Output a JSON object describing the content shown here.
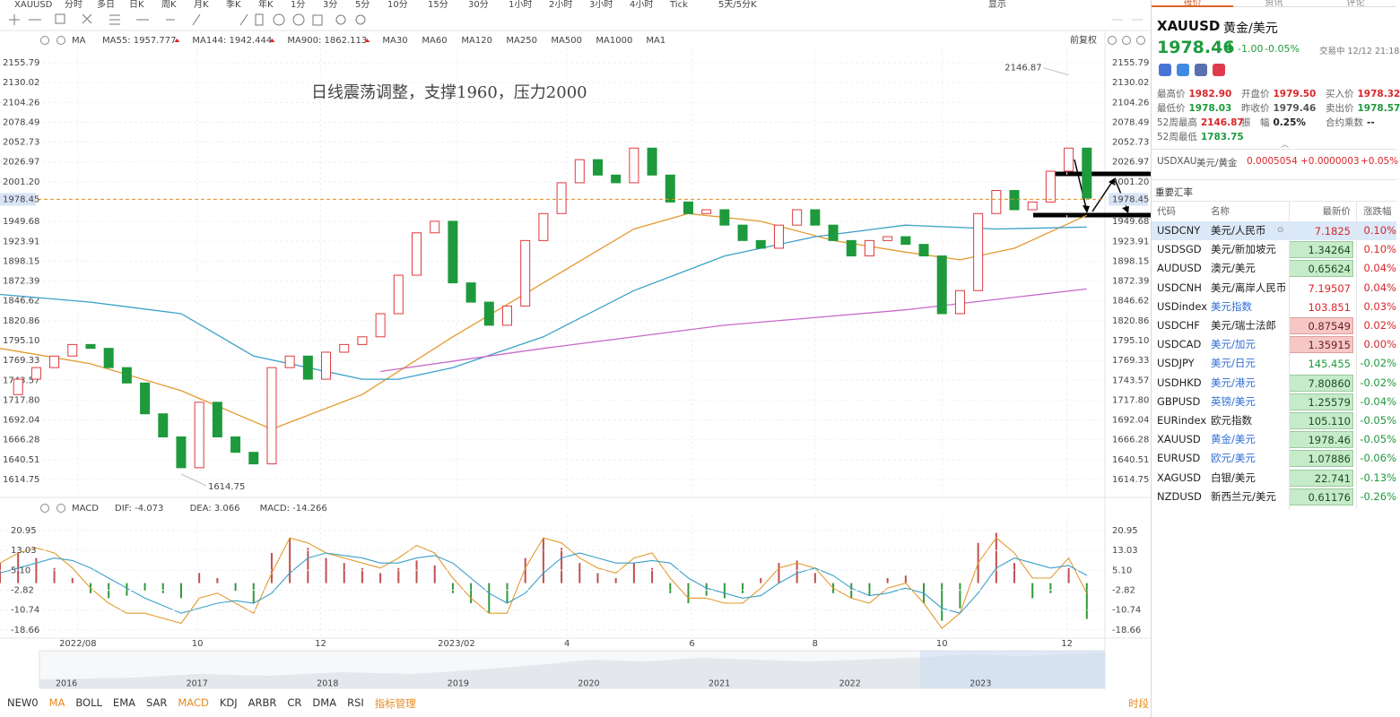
{
  "toolbar": {
    "symbol": "XAUUSD",
    "periods": [
      "分时",
      "多日",
      "日K",
      "周K",
      "月K",
      "季K",
      "年K",
      "1分",
      "3分",
      "5分",
      "10分",
      "15分",
      "30分",
      "1小时",
      "2小时",
      "3小时",
      "4小时",
      "Tick",
      "5天/5分K"
    ],
    "active": 2,
    "display": "显示"
  },
  "chart_data": [
    {
      "type": "candlestick",
      "indicator": "MA",
      "adjust": "前复权",
      "annotation": "日线震荡调整，支撑1960，压力2000",
      "high_label": 2146.87,
      "low_label": 1614.75,
      "last_price": 1978.45,
      "up_color": "#e0393e",
      "down_color": "#1e9a3c",
      "grid": true,
      "x": [
        0,
        1,
        2,
        3,
        4,
        5,
        6,
        7,
        8,
        9,
        10,
        11,
        12,
        13,
        14,
        15,
        16,
        17,
        18,
        19,
        20,
        21,
        22,
        23,
        24,
        25,
        26,
        27,
        28,
        29,
        30,
        31,
        32,
        33,
        34,
        35,
        36,
        37,
        38,
        39,
        40,
        41,
        42,
        43,
        44,
        45,
        46,
        47,
        48,
        49,
        50,
        51,
        52,
        53,
        54,
        55,
        56,
        57,
        58,
        59,
        60
      ],
      "close": [
        1725,
        1745,
        1760,
        1775,
        1790,
        1785,
        1760,
        1740,
        1700,
        1670,
        1630,
        1715,
        1670,
        1650,
        1635,
        1760,
        1775,
        1745,
        1780,
        1790,
        1800,
        1830,
        1880,
        1935,
        1950,
        1870,
        1845,
        1815,
        1840,
        1925,
        1960,
        2000,
        2030,
        2010,
        2000,
        2045,
        2010,
        1975,
        1960,
        1965,
        1945,
        1925,
        1915,
        1945,
        1965,
        1945,
        1925,
        1905,
        1925,
        1930,
        1920,
        1905,
        1830,
        1860,
        1960,
        1990,
        1965,
        1975,
        2015,
        2045,
        1980
      ],
      "series": [
        {
          "name": "MA55: 1957.777",
          "color": "#e39a2d",
          "x": [
            0,
            5,
            10,
            14,
            15,
            20,
            25,
            30,
            35,
            38,
            42,
            46,
            50,
            53,
            56,
            60
          ],
          "values": [
            1785,
            1765,
            1730,
            1690,
            1680,
            1725,
            1800,
            1870,
            1940,
            1960,
            1950,
            1925,
            1910,
            1900,
            1915,
            1957.777
          ]
        },
        {
          "name": "MA144: 1942.444",
          "color": "#3aa0c8",
          "x": [
            0,
            5,
            10,
            14,
            20,
            22,
            25,
            30,
            35,
            40,
            45,
            50,
            55,
            60
          ],
          "values": [
            1855,
            1845,
            1830,
            1775,
            1745,
            1745,
            1760,
            1800,
            1860,
            1905,
            1930,
            1945,
            1940,
            1942.444
          ]
        },
        {
          "name": "MA900: 1862.113",
          "color": "#c86ac8",
          "x": [
            21,
            30,
            40,
            50,
            60
          ],
          "values": [
            1755,
            1785,
            1815,
            1835,
            1862.113
          ]
        }
      ],
      "inactive": [
        {
          "name": "MA30",
          "color": "#aac8e8"
        },
        {
          "name": "MA60",
          "color": "#c8b0e0"
        },
        {
          "name": "MA120",
          "color": "#f0b0b8"
        },
        {
          "name": "MA250",
          "color": "#a8e0f0"
        },
        {
          "name": "MA500",
          "color": "#f0d090"
        },
        {
          "name": "MA1000",
          "color": "#c0b0d8"
        },
        {
          "name": "MA1",
          "color": "#c8c8c8"
        }
      ],
      "xlim": [
        0,
        61
      ],
      "xticks": [
        {
          "value": 4.3,
          "label": "2022/08"
        },
        {
          "value": 10.9,
          "label": "10"
        },
        {
          "value": 17.7,
          "label": "12"
        },
        {
          "value": 25.2,
          "label": "2023/02"
        },
        {
          "value": 31.3,
          "label": "4"
        },
        {
          "value": 38.2,
          "label": "6"
        },
        {
          "value": 45,
          "label": "8"
        },
        {
          "value": 52,
          "label": "10"
        },
        {
          "value": 58.9,
          "label": "12"
        }
      ],
      "ylim": [
        1599.6,
        2169.8
      ],
      "yticks": [
        2155.79,
        2130.02,
        2104.26,
        2078.49,
        2052.73,
        2026.97,
        {
          "value": 2001.2,
          "label": "2001.20"
        },
        1949.68,
        1923.91,
        1898.15,
        1872.39,
        1846.62,
        1820.86,
        {
          "value": 1795.1,
          "label": "1795.10"
        },
        1769.33,
        1743.57,
        {
          "value": 1717.8,
          "label": "1717.80"
        },
        1692.04,
        1666.28,
        1640.51,
        1614.75
      ]
    },
    {
      "type": "macd",
      "title": "MACD",
      "up_color": "#c0504d",
      "down_color": "#2f9a3a",
      "histogram": [
        8,
        12,
        10,
        6,
        2,
        -4,
        -6,
        -5,
        -3,
        -4,
        -6,
        4,
        2,
        -3,
        -8,
        12,
        18,
        14,
        10,
        8,
        6,
        4,
        6,
        9,
        7,
        -4,
        -8,
        -12,
        -8,
        10,
        18,
        14,
        8,
        4,
        2,
        8,
        6,
        -4,
        -8,
        -5,
        -6,
        -4,
        2,
        8,
        9,
        4,
        -4,
        -6,
        -5,
        2,
        3,
        -8,
        -15,
        -10,
        16,
        20,
        8,
        -6,
        -4,
        6,
        -14.266
      ],
      "series": [
        {
          "name": "DIF: -4.073",
          "color": "#e39a2d",
          "values": [
            8,
            12,
            14,
            12,
            6,
            -2,
            -8,
            -12,
            -12,
            -14,
            -16,
            -6,
            -4,
            -8,
            -12,
            4,
            18,
            16,
            12,
            10,
            8,
            6,
            10,
            15,
            12,
            2,
            -6,
            -12,
            -12,
            6,
            18,
            16,
            10,
            6,
            4,
            10,
            12,
            2,
            -6,
            -6,
            -8,
            -8,
            -2,
            6,
            8,
            6,
            -2,
            -6,
            -8,
            -2,
            0,
            -8,
            -18,
            -12,
            8,
            18,
            12,
            2,
            2,
            10,
            -4.073
          ]
        },
        {
          "name": "DEA: 3.066",
          "color": "#3aa0c8",
          "values": [
            4,
            6,
            8,
            10,
            9,
            6,
            2,
            -2,
            -6,
            -9,
            -12,
            -10,
            -8,
            -7,
            -8,
            -4,
            4,
            10,
            12,
            11,
            10,
            8,
            8,
            10,
            11,
            8,
            2,
            -4,
            -8,
            -4,
            4,
            10,
            12,
            10,
            8,
            8,
            9,
            8,
            2,
            -2,
            -4,
            -6,
            -5,
            0,
            4,
            6,
            3,
            -2,
            -5,
            -4,
            -2,
            -4,
            -10,
            -12,
            -4,
            6,
            10,
            8,
            6,
            7,
            3.066
          ]
        }
      ],
      "histogram_name": "MACD: -14.266",
      "histogram_color": "#c86ac8",
      "ylim": [
        -21.9,
        25.9
      ],
      "yticks": [
        20.95,
        13.03,
        {
          "value": 5.1,
          "label": "5.10"
        },
        -2.82,
        -10.74,
        -18.66
      ]
    }
  ],
  "navigator": {
    "years": [
      "2016",
      "2017",
      "2018",
      "2019",
      "2020",
      "2021",
      "2022",
      "2023"
    ]
  },
  "indicator_tabs": [
    "NEW0",
    "MA",
    "BOLL",
    "EMA",
    "SAR",
    "MACD",
    "KDJ",
    "ARBR",
    "CR",
    "DMA",
    "RSI",
    "指标管理"
  ],
  "active_tabs": [
    1,
    5,
    11
  ],
  "time_tab": "时段",
  "panel_tabs": [
    "报价",
    "资讯",
    "评论"
  ],
  "quote": {
    "symbol": "XAUUSD",
    "name": "黄金/美元",
    "price": "1978.46",
    "change": "-1.00",
    "change_pct": "-0.05%",
    "status": "交易中 12/12 21:18",
    "stats": [
      [
        {
          "label": "最高价",
          "value": "1982.90",
          "color": "#d9252a"
        },
        {
          "label": "开盘价",
          "value": "1979.50",
          "color": "#d9252a"
        },
        {
          "label": "买入价",
          "value": "1978.32",
          "color": "#d9252a"
        }
      ],
      [
        {
          "label": "最低价",
          "value": "1978.03",
          "color": "#1e9a3c"
        },
        {
          "label": "昨收价",
          "value": "1979.46",
          "color": "#555555"
        },
        {
          "label": "卖出价",
          "value": "1978.57",
          "color": "#1e9a3c"
        }
      ],
      [
        {
          "label": "52周最高",
          "value": "2146.87",
          "color": "#d9252a"
        },
        {
          "label": "振　幅",
          "value": "0.25%",
          "color": "#222222"
        },
        {
          "label": "合约乘数",
          "value": "--",
          "color": "#222222"
        }
      ],
      [
        {
          "label": "52周最低",
          "value": "1783.75",
          "color": "#1e9a3c"
        }
      ]
    ],
    "inverse": {
      "code": "USDXAU",
      "name": "美元/黄金",
      "price": "0.0005054",
      "change": "+0.0000003",
      "change_pct": "+0.05%"
    }
  },
  "rates": {
    "title": "重要汇率",
    "headers": [
      "代码",
      "名称",
      "最新价",
      "涨跌幅"
    ],
    "rows": [
      {
        "code": "USDCNY",
        "name": "美元/人民币",
        "price": "7.1825",
        "change": "0.10%",
        "dir": "up",
        "selected": true
      },
      {
        "code": "USDSGD",
        "name": "美元/新加坡元",
        "price": "1.34264",
        "change": "0.10%",
        "dir": "up",
        "flash": "down"
      },
      {
        "code": "AUDUSD",
        "name": "澳元/美元",
        "price": "0.65624",
        "change": "0.04%",
        "dir": "up",
        "flash": "down"
      },
      {
        "code": "USDCNH",
        "name": "美元/离岸人民币",
        "price": "7.19507",
        "change": "0.04%",
        "dir": "up"
      },
      {
        "code": "USDindex",
        "name": "美元指数",
        "price": "103.851",
        "change": "0.03%",
        "dir": "up",
        "link": true
      },
      {
        "code": "USDCHF",
        "name": "美元/瑞士法郎",
        "price": "0.87549",
        "change": "0.02%",
        "dir": "up",
        "flash": "up"
      },
      {
        "code": "USDCAD",
        "name": "美元/加元",
        "price": "1.35915",
        "change": "0.00%",
        "dir": "up",
        "flash": "up",
        "link": true
      },
      {
        "code": "USDJPY",
        "name": "美元/日元",
        "price": "145.455",
        "change": "-0.02%",
        "dir": "down",
        "link": true
      },
      {
        "code": "USDHKD",
        "name": "美元/港元",
        "price": "7.80860",
        "change": "-0.02%",
        "dir": "down",
        "flash": "down",
        "link": true
      },
      {
        "code": "GBPUSD",
        "name": "英镑/美元",
        "price": "1.25579",
        "change": "-0.04%",
        "dir": "down",
        "flash": "down",
        "link": true
      },
      {
        "code": "EURindex",
        "name": "欧元指数",
        "price": "105.110",
        "change": "-0.05%",
        "dir": "down",
        "flash": "down"
      },
      {
        "code": "XAUUSD",
        "name": "黄金/美元",
        "price": "1978.46",
        "change": "-0.05%",
        "dir": "down",
        "flash": "down",
        "link": true
      },
      {
        "code": "EURUSD",
        "name": "欧元/美元",
        "price": "1.07886",
        "change": "-0.06%",
        "dir": "down",
        "flash": "down",
        "link": true
      },
      {
        "code": "XAGUSD",
        "name": "白银/美元",
        "price": "22.741",
        "change": "-0.13%",
        "dir": "down",
        "flash": "down"
      },
      {
        "code": "NZDUSD",
        "name": "新西兰元/美元",
        "price": "0.61176",
        "change": "-0.26%",
        "dir": "down",
        "flash": "down"
      }
    ]
  }
}
